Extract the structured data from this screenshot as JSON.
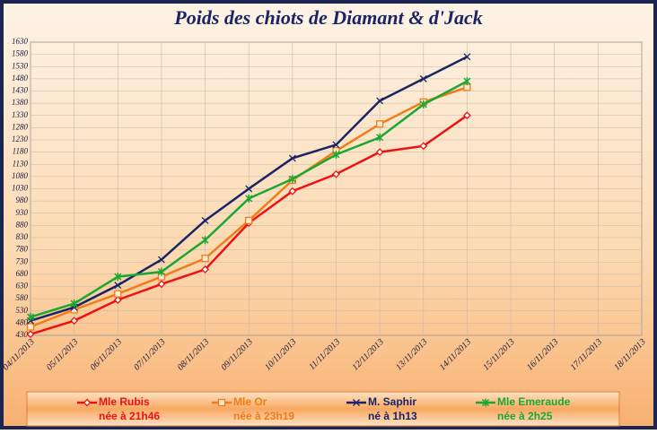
{
  "chart_data": {
    "type": "line",
    "title": "Poids des chiots de Diamant & d'Jack",
    "categories": [
      "04/11/2013",
      "05/11/2013",
      "06/11/2013",
      "07/11/2013",
      "08/11/2013",
      "09/11/2013",
      "10/11/2013",
      "11/11/2013",
      "12/11/2013",
      "13/11/2013",
      "14/11/2013",
      "15/11/2013",
      "16/11/2013",
      "17/11/2013",
      "18/11/2013"
    ],
    "series": [
      {
        "name": "Mle Rubis",
        "legend_sub": "née à 21h46",
        "color": "#ee1111",
        "marker": "diamond",
        "values": [
          435,
          490,
          575,
          640,
          700,
          890,
          1020,
          1090,
          1180,
          1205,
          1330,
          null,
          null,
          null,
          null
        ]
      },
      {
        "name": "Mle Or",
        "legend_sub": "née à 23h19",
        "color": "#f07d1a",
        "marker": "square",
        "values": [
          465,
          535,
          600,
          670,
          745,
          900,
          1065,
          1185,
          1295,
          1385,
          1445,
          null,
          null,
          null,
          null
        ]
      },
      {
        "name": "M. Saphir",
        "legend_sub": "né à 1h13",
        "color": "#1a2466",
        "marker": "x",
        "values": [
          490,
          545,
          635,
          740,
          900,
          1030,
          1155,
          1210,
          1390,
          1480,
          1570,
          null,
          null,
          null,
          null
        ]
      },
      {
        "name": "Mle Emeraude",
        "legend_sub": "née à 2h25",
        "color": "#1aa832",
        "marker": "star",
        "values": [
          505,
          560,
          670,
          690,
          820,
          990,
          1070,
          1170,
          1240,
          1375,
          1470,
          null,
          null,
          null,
          null
        ]
      }
    ],
    "ylim": [
      430,
      1630
    ],
    "yticks": [
      430,
      480,
      530,
      580,
      630,
      680,
      730,
      780,
      830,
      880,
      930,
      980,
      1030,
      1080,
      1130,
      1180,
      1230,
      1280,
      1330,
      1380,
      1430,
      1480,
      1530,
      1580,
      1630
    ],
    "grid": true
  }
}
